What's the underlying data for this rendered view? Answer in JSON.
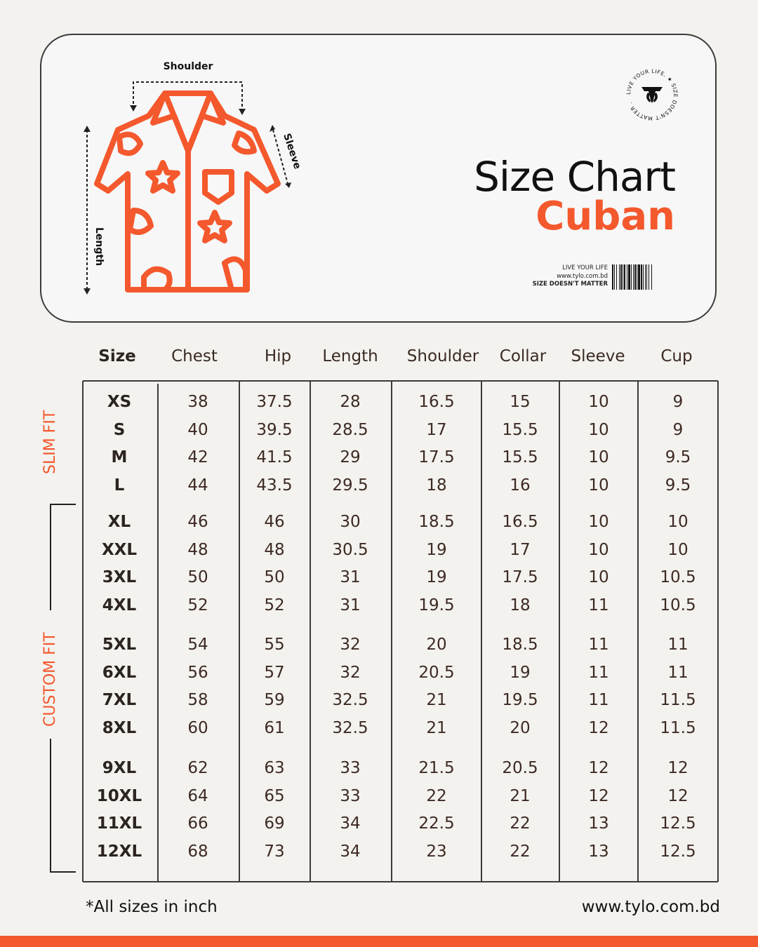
{
  "diagram": {
    "labels": {
      "shoulder": "Shoulder",
      "sleeve": "Sleeve",
      "length": "Length"
    }
  },
  "title": {
    "main": "Size Chart",
    "sub": "Cuban"
  },
  "logo": {
    "ring_text": "LIVE YOUR LIFE. ★ SIZE DOESN'T MATTER .",
    "icon": "tylo-logo-icon"
  },
  "barcode": {
    "line1": "LIVE YOUR LIFE",
    "line2": "www.tylo.com.bd",
    "line3": "SIZE DOESN'T MATTER"
  },
  "table": {
    "headers": [
      "Size",
      "Chest",
      "Hip",
      "Length",
      "Shoulder",
      "Collar",
      "Sleeve",
      "Cup"
    ],
    "rows": [
      [
        "XS",
        "38",
        "37.5",
        "28",
        "16.5",
        "15",
        "10",
        "9"
      ],
      [
        "S",
        "40",
        "39.5",
        "28.5",
        "17",
        "15.5",
        "10",
        "9"
      ],
      [
        "M",
        "42",
        "41.5",
        "29",
        "17.5",
        "15.5",
        "10",
        "9.5"
      ],
      [
        "L",
        "44",
        "43.5",
        "29.5",
        "18",
        "16",
        "10",
        "9.5"
      ],
      [
        "XL",
        "46",
        "46",
        "30",
        "18.5",
        "16.5",
        "10",
        "10"
      ],
      [
        "XXL",
        "48",
        "48",
        "30.5",
        "19",
        "17",
        "10",
        "10"
      ],
      [
        "3XL",
        "50",
        "50",
        "31",
        "19",
        "17.5",
        "10",
        "10.5"
      ],
      [
        "4XL",
        "52",
        "52",
        "31",
        "19.5",
        "18",
        "11",
        "10.5"
      ],
      [
        "5XL",
        "54",
        "55",
        "32",
        "20",
        "18.5",
        "11",
        "11"
      ],
      [
        "6XL",
        "56",
        "57",
        "32",
        "20.5",
        "19",
        "11",
        "11"
      ],
      [
        "7XL",
        "58",
        "59",
        "32.5",
        "21",
        "19.5",
        "11",
        "11.5"
      ],
      [
        "8XL",
        "60",
        "61",
        "32.5",
        "21",
        "20",
        "12",
        "11.5"
      ],
      [
        "9XL",
        "62",
        "63",
        "33",
        "21.5",
        "20.5",
        "12",
        "12"
      ],
      [
        "10XL",
        "64",
        "65",
        "33",
        "22",
        "21",
        "12",
        "12"
      ],
      [
        "11XL",
        "66",
        "69",
        "34",
        "22.5",
        "22",
        "13",
        "12.5"
      ],
      [
        "12XL",
        "68",
        "73",
        "34",
        "23",
        "22",
        "13",
        "12.5"
      ]
    ]
  },
  "side_labels": {
    "slim": "SLIM FIT",
    "custom": "CUSTOM FIT"
  },
  "footer": {
    "note": "*All sizes in inch",
    "website": "www.tylo.com.bd"
  },
  "colors": {
    "accent": "#f4582d",
    "text": "#3a2a22",
    "background": "#f3f2ef"
  }
}
